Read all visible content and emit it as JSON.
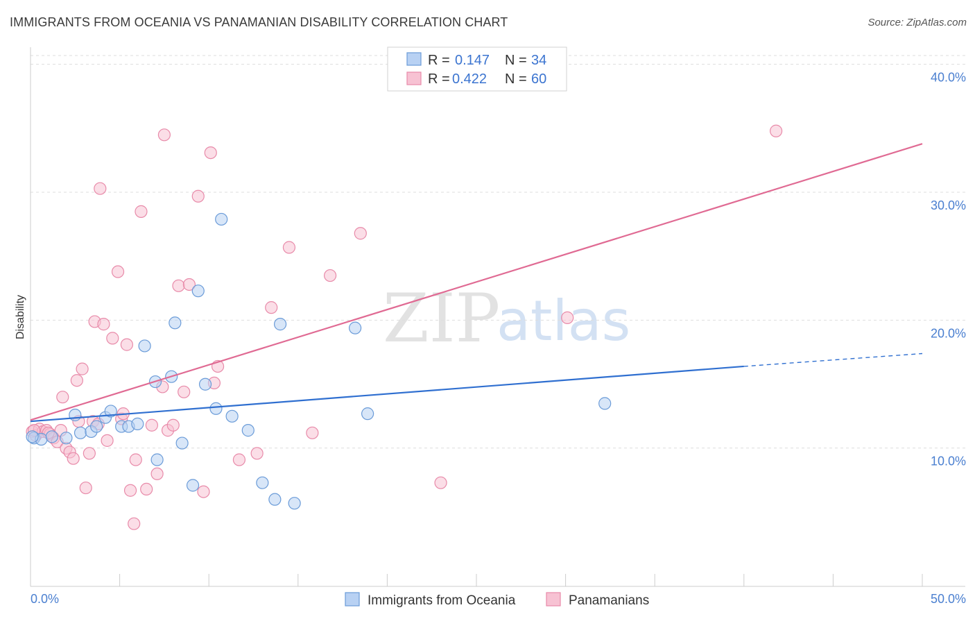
{
  "title": "IMMIGRANTS FROM OCEANIA VS PANAMANIAN DISABILITY CORRELATION CHART",
  "source": "Source: ZipAtlas.com",
  "watermark": {
    "zip": "ZIP",
    "atlas": "atlas"
  },
  "colors": {
    "blue_fill": "#b8d1f3",
    "blue_stroke": "#6a9bd8",
    "blue_line": "#2f6fd0",
    "pink_fill": "#f7c2d3",
    "pink_stroke": "#e88aa9",
    "pink_line": "#e06a93",
    "grid": "#dddddd",
    "tick_text": "#4a7fd0"
  },
  "legend": {
    "rows": [
      {
        "r_label": "R =",
        "r_value": "0.147",
        "n_label": "N =",
        "n_value": "34"
      },
      {
        "r_label": "R =",
        "r_value": "0.422",
        "n_label": "N =",
        "n_value": "60"
      }
    ]
  },
  "chart_data": {
    "type": "scatter",
    "title": "IMMIGRANTS FROM OCEANIA VS PANAMANIAN DISABILITY CORRELATION CHART",
    "xlabel": "",
    "ylabel": "Disability",
    "xlim": [
      0,
      50
    ],
    "ylim": [
      0,
      41.5
    ],
    "x_tick_labels": [
      "0.0%",
      "50.0%"
    ],
    "y_ticks": [
      10,
      20,
      30,
      40
    ],
    "y_tick_labels": [
      "10.0%",
      "20.0%",
      "30.0%",
      "40.0%"
    ],
    "grid": true,
    "series": [
      {
        "name": "Immigrants from Oceania",
        "color": "blue",
        "R": 0.147,
        "N": 34,
        "trend": {
          "x": [
            0,
            40
          ],
          "y": [
            12.9,
            17.2
          ],
          "dashed_to": [
            50,
            18.2
          ]
        },
        "points": [
          [
            0.2,
            11.6
          ],
          [
            0.6,
            11.5
          ],
          [
            1.2,
            11.7
          ],
          [
            2.0,
            11.6
          ],
          [
            2.5,
            13.4
          ],
          [
            2.8,
            12.0
          ],
          [
            3.4,
            12.1
          ],
          [
            3.7,
            12.5
          ],
          [
            4.2,
            13.2
          ],
          [
            4.5,
            13.7
          ],
          [
            5.1,
            12.5
          ],
          [
            5.5,
            12.5
          ],
          [
            6.0,
            12.7
          ],
          [
            6.4,
            18.8
          ],
          [
            7.0,
            16.0
          ],
          [
            7.1,
            9.9
          ],
          [
            7.9,
            16.4
          ],
          [
            8.1,
            20.6
          ],
          [
            8.5,
            11.2
          ],
          [
            9.1,
            7.9
          ],
          [
            9.4,
            23.1
          ],
          [
            9.8,
            15.8
          ],
          [
            10.4,
            13.9
          ],
          [
            10.7,
            28.7
          ],
          [
            11.3,
            13.3
          ],
          [
            12.2,
            12.2
          ],
          [
            13.0,
            8.1
          ],
          [
            13.7,
            6.8
          ],
          [
            14.0,
            20.5
          ],
          [
            14.8,
            6.5
          ],
          [
            18.2,
            20.2
          ],
          [
            18.9,
            13.5
          ],
          [
            32.2,
            14.3
          ],
          [
            0.1,
            11.7
          ]
        ]
      },
      {
        "name": "Panamanians",
        "color": "pink",
        "R": 0.422,
        "N": 60,
        "trend": {
          "x": [
            0,
            50
          ],
          "y": [
            13.0,
            34.6
          ]
        },
        "points": [
          [
            0.1,
            12.1
          ],
          [
            0.3,
            11.8
          ],
          [
            0.5,
            12.3
          ],
          [
            0.7,
            12.1
          ],
          [
            0.9,
            12.2
          ],
          [
            1.1,
            11.9
          ],
          [
            1.3,
            11.6
          ],
          [
            1.5,
            11.3
          ],
          [
            1.7,
            12.2
          ],
          [
            1.8,
            14.8
          ],
          [
            2.0,
            10.8
          ],
          [
            2.2,
            10.5
          ],
          [
            2.4,
            10.0
          ],
          [
            2.6,
            16.1
          ],
          [
            2.7,
            12.9
          ],
          [
            2.9,
            17.0
          ],
          [
            3.1,
            7.7
          ],
          [
            3.3,
            10.4
          ],
          [
            3.5,
            12.9
          ],
          [
            3.6,
            20.7
          ],
          [
            3.8,
            12.7
          ],
          [
            3.9,
            31.1
          ],
          [
            4.1,
            20.5
          ],
          [
            4.3,
            11.4
          ],
          [
            4.6,
            19.4
          ],
          [
            4.9,
            24.6
          ],
          [
            5.1,
            13.1
          ],
          [
            5.2,
            13.5
          ],
          [
            5.4,
            18.9
          ],
          [
            5.6,
            7.5
          ],
          [
            5.8,
            4.9
          ],
          [
            5.9,
            9.9
          ],
          [
            6.2,
            29.3
          ],
          [
            6.5,
            7.6
          ],
          [
            6.8,
            12.6
          ],
          [
            7.1,
            8.8
          ],
          [
            7.4,
            15.6
          ],
          [
            7.7,
            12.2
          ],
          [
            7.5,
            35.3
          ],
          [
            8.0,
            12.6
          ],
          [
            8.3,
            23.5
          ],
          [
            8.6,
            15.2
          ],
          [
            8.9,
            23.6
          ],
          [
            9.4,
            30.5
          ],
          [
            9.7,
            7.4
          ],
          [
            10.1,
            33.9
          ],
          [
            10.3,
            15.9
          ],
          [
            10.5,
            17.2
          ],
          [
            11.7,
            9.9
          ],
          [
            12.7,
            10.4
          ],
          [
            13.5,
            21.8
          ],
          [
            14.5,
            26.5
          ],
          [
            15.8,
            12.0
          ],
          [
            16.8,
            24.3
          ],
          [
            18.5,
            27.6
          ],
          [
            23.0,
            8.1
          ],
          [
            30.1,
            21.0
          ],
          [
            41.8,
            35.6
          ],
          [
            0.2,
            12.2
          ],
          [
            1.0,
            12.0
          ]
        ]
      }
    ]
  },
  "bottom_legend": [
    {
      "label": "Immigrants from Oceania"
    },
    {
      "label": "Panamanians"
    }
  ]
}
